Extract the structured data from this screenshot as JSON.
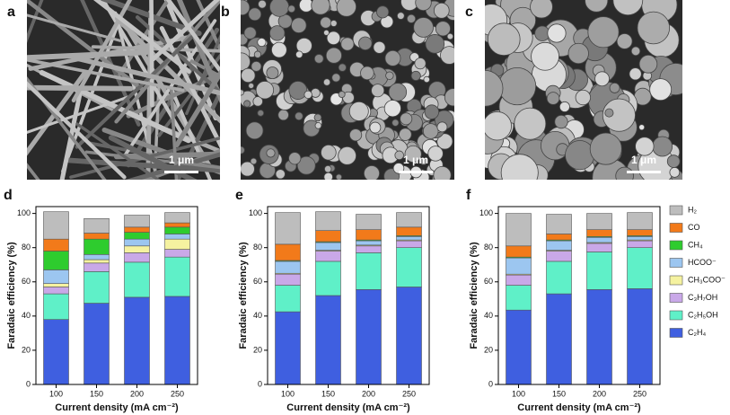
{
  "images": [
    {
      "label": "a",
      "scale_bar": "1 μm"
    },
    {
      "label": "b",
      "scale_bar": "1 μm"
    },
    {
      "label": "c",
      "scale_bar": "1 μm"
    }
  ],
  "chart_data": [
    {
      "type": "bar",
      "stacked": true,
      "panel": "d",
      "x_label": "Current density (mA cm⁻²)",
      "y_label": "Faradaic efficiency (%)",
      "categories": [
        "100",
        "150",
        "200",
        "250"
      ],
      "ylim": [
        0,
        104
      ],
      "yticks": [
        0,
        20,
        40,
        60,
        80,
        100
      ],
      "series": [
        {
          "name": "C₂H₄",
          "color": "#3f5fe0",
          "values": [
            38,
            47.5,
            51,
            51.5
          ]
        },
        {
          "name": "C₂H₅OH",
          "color": "#5ff0c8",
          "values": [
            15,
            18.5,
            20.5,
            23
          ]
        },
        {
          "name": "C₃H₇OH",
          "color": "#c9a8e8",
          "values": [
            4,
            5,
            5.5,
            4.5
          ]
        },
        {
          "name": "CH₃COO⁻",
          "color": "#f5f2a0",
          "values": [
            2,
            2,
            4,
            6
          ]
        },
        {
          "name": "HCOO⁻",
          "color": "#9cc6f0",
          "values": [
            8,
            3,
            4,
            3
          ]
        },
        {
          "name": "CH₄",
          "color": "#2ecc2e",
          "values": [
            11,
            9,
            4,
            4
          ]
        },
        {
          "name": "CO",
          "color": "#f27a1a",
          "values": [
            7,
            3.5,
            3,
            2.5
          ]
        },
        {
          "name": "H₂",
          "color": "#bdbdbd",
          "values": [
            16,
            8.5,
            7,
            6
          ]
        }
      ]
    },
    {
      "type": "bar",
      "stacked": true,
      "panel": "e",
      "x_label": "Current density (mA cm⁻²)",
      "y_label": "Faradaic efficiency (%)",
      "categories": [
        "100",
        "150",
        "200",
        "250"
      ],
      "ylim": [
        0,
        104
      ],
      "yticks": [
        0,
        20,
        40,
        60,
        80,
        100
      ],
      "series": [
        {
          "color": "#3f5fe0",
          "values": [
            42.5,
            52,
            55.5,
            57
          ]
        },
        {
          "color": "#5ff0c8",
          "values": [
            15.5,
            20,
            21.5,
            23
          ]
        },
        {
          "color": "#c9a8e8",
          "values": [
            6.5,
            6,
            4,
            4
          ]
        },
        {
          "color": "#f5f2a0",
          "values": [
            0.5,
            0.5,
            0.5,
            0.5
          ]
        },
        {
          "color": "#9cc6f0",
          "values": [
            7,
            4.5,
            2.5,
            2
          ]
        },
        {
          "color": "#2ecc2e",
          "values": [
            0.5,
            0.5,
            0.5,
            0.5
          ]
        },
        {
          "color": "#f27a1a",
          "values": [
            9.5,
            6.5,
            6,
            5
          ]
        },
        {
          "color": "#bdbdbd",
          "values": [
            18.5,
            11,
            9,
            8.5
          ]
        }
      ]
    },
    {
      "type": "bar",
      "stacked": true,
      "panel": "f",
      "x_label": "Current density (mA cm⁻²)",
      "y_label": "Faradaic efficiency (%)",
      "categories": [
        "100",
        "150",
        "200",
        "250"
      ],
      "ylim": [
        0,
        104
      ],
      "yticks": [
        0,
        20,
        40,
        60,
        80,
        100
      ],
      "series": [
        {
          "color": "#3f5fe0",
          "values": [
            43.5,
            53,
            55.5,
            56
          ]
        },
        {
          "color": "#5ff0c8",
          "values": [
            14.5,
            19,
            22,
            24
          ]
        },
        {
          "color": "#c9a8e8",
          "values": [
            6,
            6,
            5,
            4
          ]
        },
        {
          "color": "#f5f2a0",
          "values": [
            0.5,
            0.5,
            0.5,
            0.5
          ]
        },
        {
          "color": "#9cc6f0",
          "values": [
            9.5,
            5.5,
            3,
            2
          ]
        },
        {
          "color": "#2ecc2e",
          "values": [
            0.5,
            0.5,
            0.5,
            0.5
          ]
        },
        {
          "color": "#f27a1a",
          "values": [
            6.5,
            3.5,
            4,
            3.5
          ]
        },
        {
          "color": "#bdbdbd",
          "values": [
            19,
            11.5,
            9.5,
            10
          ]
        }
      ]
    }
  ]
}
